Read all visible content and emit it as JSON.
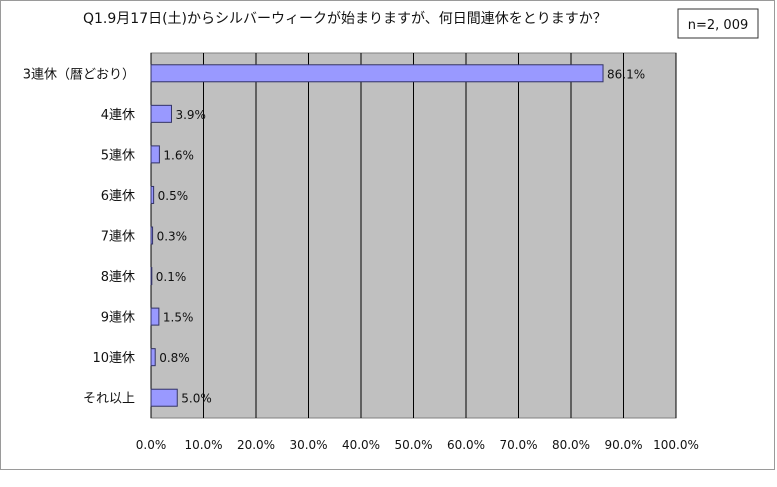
{
  "chart_data": {
    "type": "bar",
    "orientation": "horizontal",
    "title": "Q1.9月17日(土)からシルバーウィークが始まりますが、何日間連休をとりますか？",
    "sample_size": "n=2, 009",
    "categories": [
      "3連休（暦どおり）",
      "4連休",
      "5連休",
      "6連休",
      "7連休",
      "8連休",
      "9連休",
      "10連休",
      "それ以上"
    ],
    "values": [
      86.1,
      3.9,
      1.6,
      0.5,
      0.3,
      0.1,
      1.5,
      0.8,
      5.0
    ],
    "value_labels": [
      "86.1%",
      "3.9%",
      "1.6%",
      "0.5%",
      "0.3%",
      "0.1%",
      "1.5%",
      "0.8%",
      "5.0%"
    ],
    "xlim": [
      0,
      100
    ],
    "x_ticks": [
      0,
      10,
      20,
      30,
      40,
      50,
      60,
      70,
      80,
      90,
      100
    ],
    "x_tick_labels": [
      "0.0%",
      "10.0%",
      "20.0%",
      "30.0%",
      "40.0%",
      "50.0%",
      "60.0%",
      "70.0%",
      "80.0%",
      "90.0%",
      "100.0%"
    ],
    "xlabel": "",
    "ylabel": "",
    "grid": "vertical",
    "legend": "none",
    "colors": {
      "plot_background": "#c0c0c0",
      "bar_fill": "#9999ff",
      "bar_stroke": "#333366",
      "grid": "#000000"
    }
  }
}
